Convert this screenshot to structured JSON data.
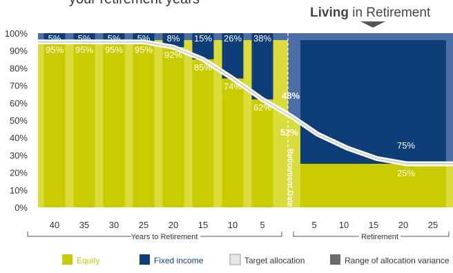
{
  "header": {
    "cut_title": "your retirement years",
    "living_bold": "Living",
    "living_rest": "in Retirement"
  },
  "colors": {
    "equity": "#c8cc00",
    "equity_light": "#d9dc3a",
    "fixed_income": "#0e3e78",
    "fixed_light": "#4a6ea5",
    "variance": "#6b6b6b",
    "target": "#e6e6e6",
    "text": "#333333",
    "white": "#ffffff"
  },
  "chart_data": {
    "type": "bar",
    "stacked": true,
    "ylim": [
      0,
      100
    ],
    "y_ticks": [
      "0%",
      "10%",
      "20%",
      "30%",
      "40%",
      "50%",
      "60%",
      "70%",
      "80%",
      "90%",
      "100%"
    ],
    "categories": [
      "40",
      "35",
      "30",
      "25",
      "20",
      "15",
      "10",
      "5"
    ],
    "group_label": "Years to Retirement",
    "series": [
      {
        "name": "Equity",
        "values": [
          95,
          95,
          95,
          95,
          92,
          85,
          74,
          62
        ],
        "labels": [
          "95%",
          "95%",
          "95%",
          "95%",
          "92%",
          "85%",
          "74%",
          "62%"
        ]
      },
      {
        "name": "Fixed income",
        "values": [
          5,
          5,
          5,
          5,
          8,
          15,
          26,
          38
        ],
        "labels": [
          "5%",
          "5%",
          "5%",
          "5%",
          "8%",
          "15%",
          "26%",
          "38%"
        ]
      }
    ],
    "retirement_date": {
      "label": "Retirement Date",
      "equity_label": "52%",
      "fixed_label": "48%",
      "equity": 52,
      "fixed": 48
    },
    "retirement": {
      "categories": [
        "5",
        "10",
        "15",
        "20",
        "25"
      ],
      "group_label": "Retirement",
      "equity_label": "25%",
      "fixed_label": "75%",
      "equity": 25,
      "fixed": 75
    },
    "glide_path": [
      {
        "t": 40,
        "equity": 95
      },
      {
        "t": 35,
        "equity": 95
      },
      {
        "t": 30,
        "equity": 95
      },
      {
        "t": 25,
        "equity": 95
      },
      {
        "t": 20,
        "equity": 92
      },
      {
        "t": 15,
        "equity": 85
      },
      {
        "t": 10,
        "equity": 74
      },
      {
        "t": 5,
        "equity": 62
      },
      {
        "t": 0,
        "equity": 52
      },
      {
        "t": -5,
        "equity": 42
      },
      {
        "t": -10,
        "equity": 34
      },
      {
        "t": -15,
        "equity": 28
      },
      {
        "t": -20,
        "equity": 25
      },
      {
        "t": -25,
        "equity": 25
      }
    ],
    "legend": [
      {
        "key": "equity",
        "label": "Equity"
      },
      {
        "key": "fixed_income",
        "label": "Fixed income"
      },
      {
        "key": "target",
        "label": "Target allocation"
      },
      {
        "key": "variance",
        "label": "Range of allocation variance"
      }
    ]
  }
}
